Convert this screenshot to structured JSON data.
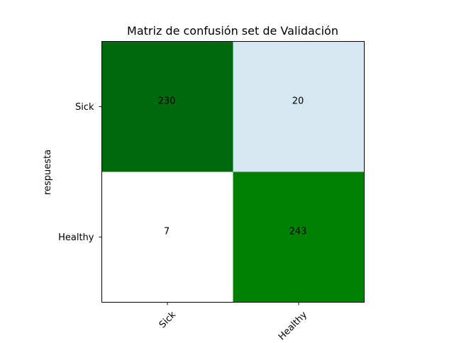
{
  "chart_data": {
    "type": "heatmap",
    "title": "Matriz de confusión set de Validación",
    "xlabel": "",
    "ylabel": "respuesta",
    "x_categories": [
      "Sick",
      "Healthy"
    ],
    "y_categories": [
      "Sick",
      "Healthy"
    ],
    "values": [
      [
        230,
        20
      ],
      [
        7,
        243
      ]
    ],
    "cell_colors": [
      [
        "#006a0c",
        "#d5e8f1"
      ],
      [
        "#ffffff",
        "#008000"
      ]
    ],
    "x_tick_rotation_deg": 45,
    "grid": false,
    "legend": "none"
  }
}
